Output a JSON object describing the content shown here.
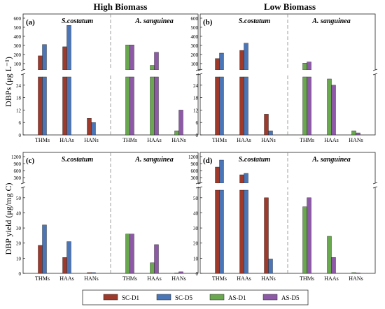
{
  "figure": {
    "column_titles": [
      "High Biomass",
      "Low Biomass"
    ],
    "y_label_top": "DBPs (μg L⁻¹)",
    "y_label_bottom": "DBP yield (μg/mg C)",
    "legend": [
      {
        "label": "SC-D1",
        "color": "#9e3a2b"
      },
      {
        "label": "SC-D5",
        "color": "#4a76b8"
      },
      {
        "label": "AS-D1",
        "color": "#6aa84f"
      },
      {
        "label": "AS-D5",
        "color": "#8e5aa8"
      }
    ],
    "group_titles": [
      "S.costatum",
      "A. sanguinea"
    ]
  },
  "chart_data": [
    {
      "type": "bar",
      "panel": "(a)",
      "categories": [
        "THMs",
        "HAAs",
        "HANs"
      ],
      "y_ticks_upper": [
        100,
        200,
        300,
        400,
        500,
        600
      ],
      "y_ticks_lower": [
        0,
        6,
        12,
        18,
        24
      ],
      "ylim_upper": [
        30,
        600
      ],
      "ylim_lower": [
        0,
        28
      ],
      "series": [
        {
          "name": "SC-D1",
          "group": "S.costatum",
          "values": [
            185,
            285,
            8
          ]
        },
        {
          "name": "SC-D5",
          "group": "S.costatum",
          "values": [
            310,
            520,
            6
          ]
        },
        {
          "name": "AS-D1",
          "group": "A. sanguinea",
          "values": [
            305,
            80,
            2
          ]
        },
        {
          "name": "AS-D5",
          "group": "A. sanguinea",
          "values": [
            305,
            225,
            12
          ]
        }
      ]
    },
    {
      "type": "bar",
      "panel": "(b)",
      "categories": [
        "THMs",
        "HAAs",
        "HANs"
      ],
      "y_ticks_upper": [
        100,
        200,
        300,
        400,
        500,
        600
      ],
      "y_ticks_lower": [
        0,
        6,
        12,
        18,
        24
      ],
      "ylim_upper": [
        30,
        600
      ],
      "ylim_lower": [
        0,
        28
      ],
      "series": [
        {
          "name": "SC-D1",
          "group": "S.costatum",
          "values": [
            155,
            245,
            10
          ]
        },
        {
          "name": "SC-D5",
          "group": "S.costatum",
          "values": [
            215,
            325,
            2
          ]
        },
        {
          "name": "AS-D1",
          "group": "A. sanguinea",
          "values": [
            105,
            27,
            2
          ]
        },
        {
          "name": "AS-D5",
          "group": "A. sanguinea",
          "values": [
            118,
            24,
            1
          ]
        }
      ]
    },
    {
      "type": "bar",
      "panel": "(c)",
      "categories": [
        "THMs",
        "HAAs",
        "HANs"
      ],
      "y_ticks_upper": [
        300,
        600,
        900,
        1200
      ],
      "y_ticks_lower": [
        0,
        10,
        20,
        30,
        40,
        50
      ],
      "ylim_upper": [
        60,
        1200
      ],
      "ylim_lower": [
        0,
        55
      ],
      "series": [
        {
          "name": "SC-D1",
          "group": "S.costatum",
          "values": [
            18.5,
            10.5,
            0.5
          ]
        },
        {
          "name": "SC-D5",
          "group": "S.costatum",
          "values": [
            32,
            21,
            0.5
          ]
        },
        {
          "name": "AS-D1",
          "group": "A. sanguinea",
          "values": [
            26,
            7,
            0.3
          ]
        },
        {
          "name": "AS-D5",
          "group": "A. sanguinea",
          "values": [
            26,
            19,
            1
          ]
        }
      ]
    },
    {
      "type": "bar",
      "panel": "(d)",
      "categories": [
        "THMs",
        "HAAs",
        "HANs"
      ],
      "y_ticks_upper": [
        300,
        600,
        900,
        1200
      ],
      "y_ticks_lower": [
        0,
        10,
        20,
        30,
        40,
        50
      ],
      "ylim_upper": [
        60,
        1200
      ],
      "ylim_lower": [
        0,
        55
      ],
      "series": [
        {
          "name": "SC-D1",
          "group": "S.costatum",
          "values": [
            750,
            420,
            50
          ]
        },
        {
          "name": "SC-D5",
          "group": "S.costatum",
          "values": [
            1050,
            480,
            9.5
          ]
        },
        {
          "name": "AS-D1",
          "group": "A. sanguinea",
          "values": [
            44,
            24.5,
            0.5
          ]
        },
        {
          "name": "AS-D5",
          "group": "A. sanguinea",
          "values": [
            50,
            10.5,
            0.3
          ]
        }
      ]
    }
  ]
}
